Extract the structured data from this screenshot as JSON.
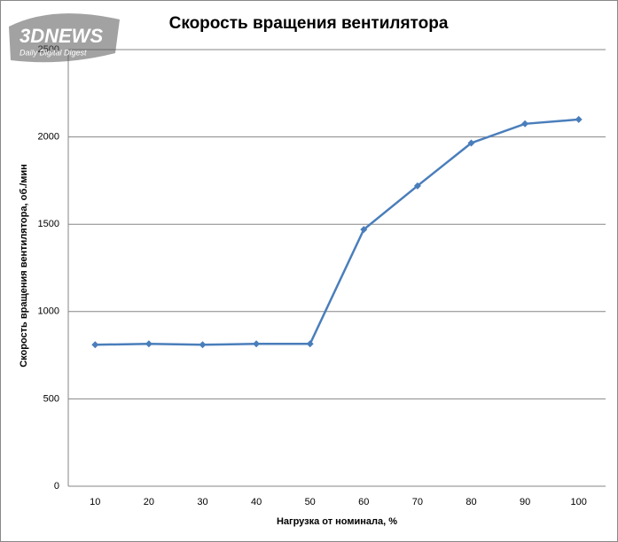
{
  "chart_data": {
    "type": "line",
    "title": "Скорость вращения вентилятора",
    "x_label": "Нагрузка  от номинала,  %",
    "y_label": "Скорость вращения вентилятора,  об./мин",
    "logo": {
      "brand": "3DNEWS",
      "tagline": "Daily Digital Digest"
    },
    "categories": [
      "10",
      "20",
      "30",
      "40",
      "50",
      "60",
      "70",
      "80",
      "90",
      "100"
    ],
    "series": [
      {
        "name": "Скорость вращения вентилятора",
        "color": "#4a7ebb",
        "values": [
          810,
          815,
          810,
          815,
          815,
          1470,
          1720,
          1965,
          2075,
          2100
        ]
      }
    ],
    "ylim": [
      0,
      2500
    ],
    "yticks": [
      0,
      500,
      1000,
      1500,
      2000,
      2500
    ],
    "grid": true
  }
}
